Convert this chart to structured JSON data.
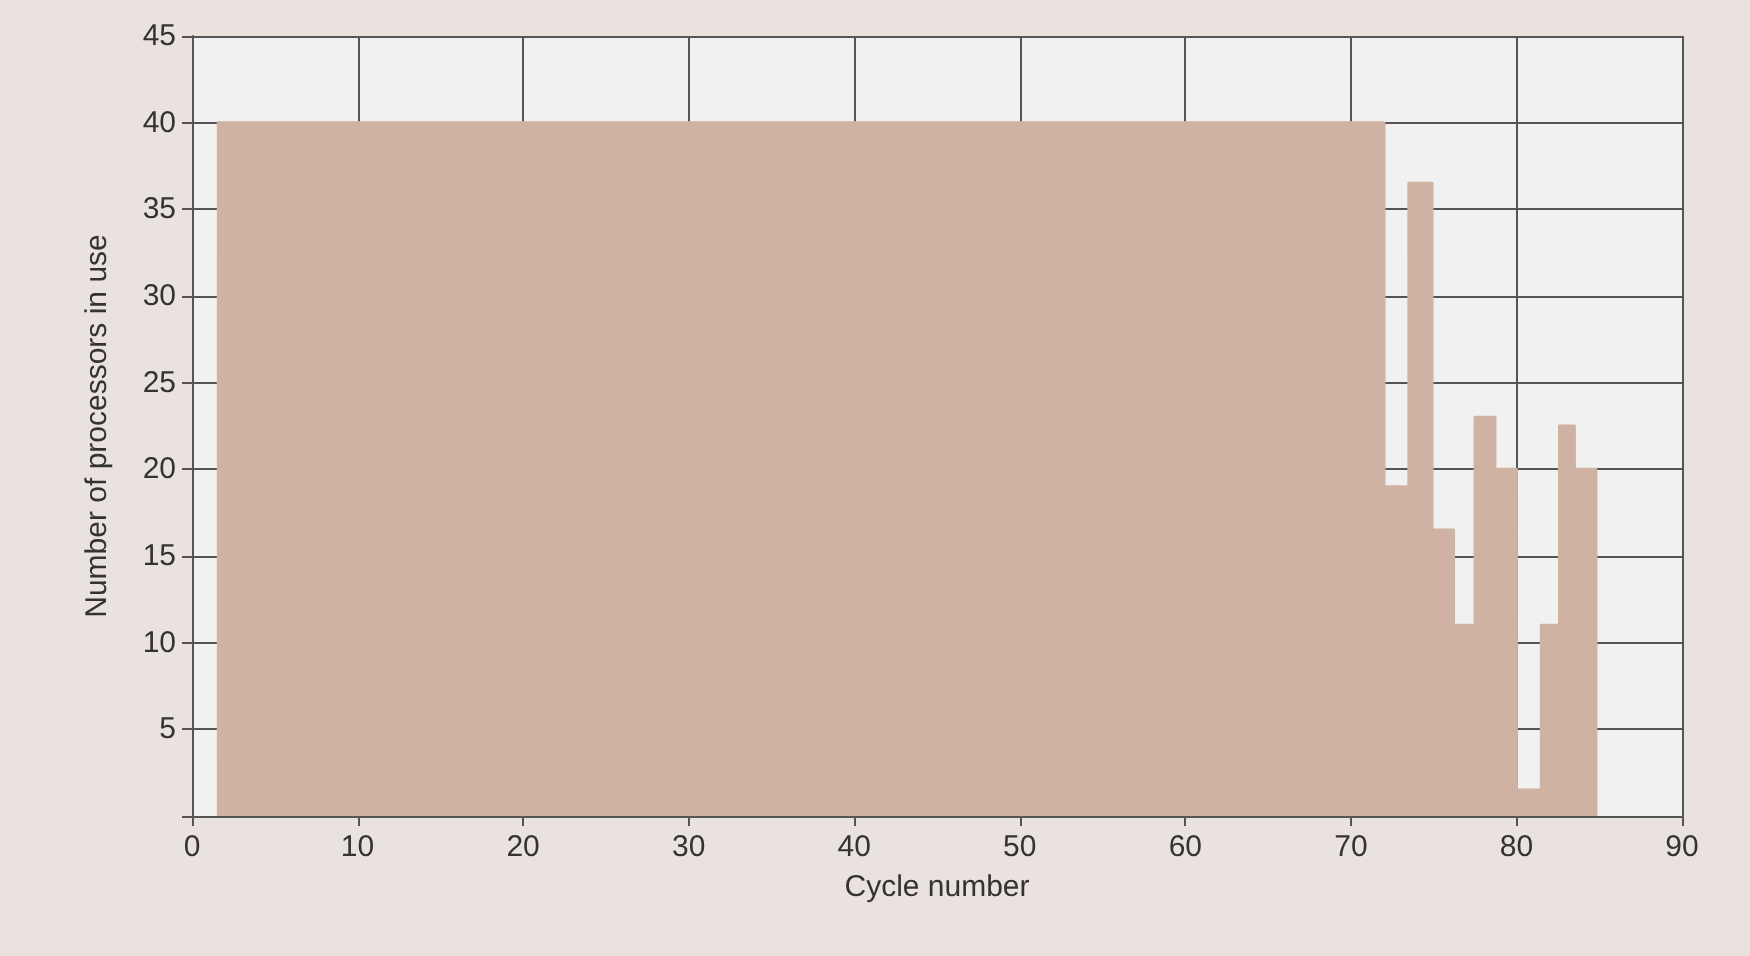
{
  "chart_data": {
    "type": "area",
    "xlabel": "Cycle number",
    "ylabel": "Number of processors in use",
    "x": [
      1.5,
      72,
      73.5,
      74.9,
      76.2,
      77.5,
      78.7,
      80,
      81.5,
      82.6,
      83.5,
      84.8
    ],
    "series": [
      {
        "color": "#cfb2a2",
        "values": [
          40,
          19,
          36.5,
          16.5,
          11,
          23,
          20,
          1.5,
          11,
          22.5,
          20,
          0
        ]
      }
    ],
    "xlim": [
      0,
      90
    ],
    "xticks": [
      0,
      10,
      20,
      30,
      40,
      50,
      60,
      70,
      80,
      90
    ],
    "ylim": [
      0,
      45
    ],
    "yticks": [
      {
        "value": 0,
        "label": null
      },
      5,
      10,
      15,
      20,
      25,
      30,
      35,
      40,
      45
    ],
    "grid": true,
    "marker": "none",
    "line_style": "solid"
  }
}
